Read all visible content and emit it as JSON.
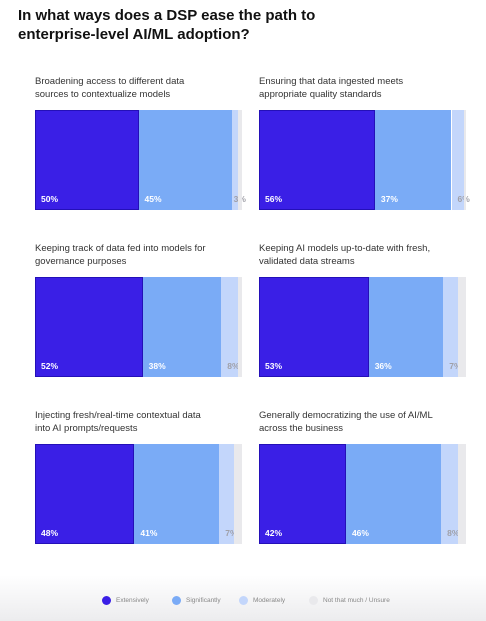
{
  "chart_data": {
    "type": "stacked_bar_panels",
    "title": "In what ways does a DSP ease the path to enterprise-level AI/ML adoption?",
    "categories": [
      "Broadening access to different data sources to contextualize models",
      "Ensuring that data ingested meets appropriate quality standards",
      "Keeping track of data fed into models for governance purposes",
      "Keeping AI models up-to-date with fresh, validated data streams",
      "Injecting fresh/real-time contextual data into AI prompts/requests",
      "Generally democratizing the use of AI/ML across the business"
    ],
    "series": [
      {
        "name": "Extensively",
        "color": "#3a1fe6",
        "values": [
          50,
          56,
          52,
          53,
          48,
          42
        ],
        "value_labels": [
          "50%",
          "56%",
          "52%",
          "53%",
          "48%",
          "42%"
        ]
      },
      {
        "name": "Significantly",
        "color": "#7aabf6",
        "values": [
          45,
          37,
          38,
          36,
          41,
          46
        ],
        "value_labels": [
          "45%",
          "37%",
          "38%",
          "36%",
          "41%",
          "46%"
        ]
      },
      {
        "name": "Moderately",
        "color": "#c3d6fb",
        "values": [
          3,
          6,
          8,
          7,
          7,
          8
        ],
        "value_labels": [
          "3%",
          "6%",
          "8%",
          "7%",
          "7%",
          "8%"
        ]
      },
      {
        "name": "Not that much / Unsure",
        "color": "#e9e9ec",
        "values": [
          2,
          1,
          2,
          4,
          4,
          4
        ]
      }
    ],
    "xlim": [
      0,
      100
    ],
    "legend": "bottom"
  }
}
